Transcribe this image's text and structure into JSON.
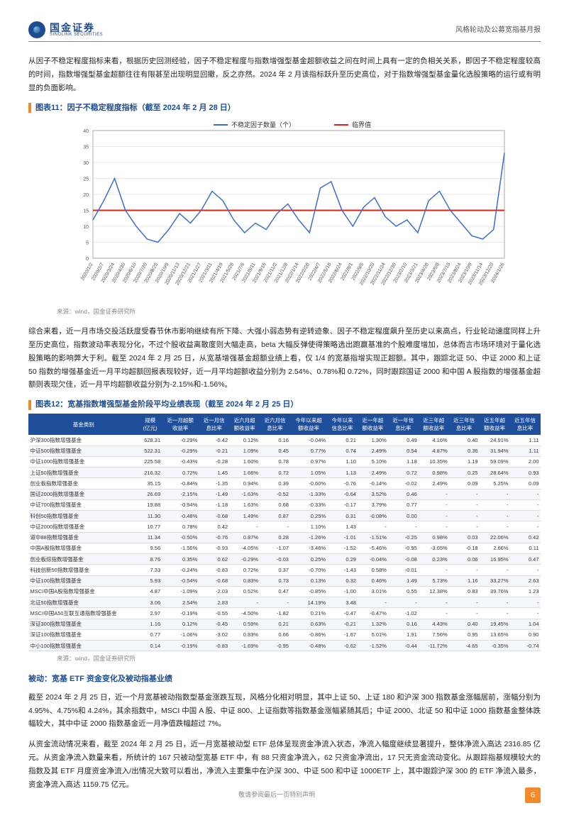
{
  "header": {
    "logo_cn": "国金证券",
    "logo_en": "SINOLINK SECURITIES",
    "report_title": "风格轮动及公募宽指基月报"
  },
  "para1": "从因子不稳定程度指标来看，根据历史回测经验，因子不稳定程度与指数增强型基金超额收益之间在时间上具有一定的负相关关系，即因子不稳定程度较高的时间，指数增强型基金超额往往有限甚至出现明显回撤，反之亦然。2024 年 2 月该指标跃升至历史高位，对于指数增强型基金量化选股策略的运行或有明显的负面影响。",
  "chart11": {
    "title": "图表11：因子不稳定程度指标（截至 2024 年 2 月 28 日）",
    "legend_series": "不稳定因子数量（个）",
    "legend_threshold": "临界值",
    "ylim": [
      0,
      40
    ],
    "ytick_step": 5,
    "threshold_value": 15,
    "series_color": "#3a6fc9",
    "threshold_color": "#d8261c",
    "grid_color": "#cfcfcf",
    "background_color": "#ffffff",
    "axis_fontsize": 7,
    "x_labels": [
      "2020/1/2",
      "2020/2/7",
      "2020/3/24",
      "2020/4/30",
      "2020/6/10",
      "2020/7/20",
      "2020/8/25",
      "2020/10/9",
      "2020/11/13",
      "2020/12/21",
      "2021/1/27",
      "2021/3/11",
      "2021/4/19",
      "2021/5/28",
      "2021/7/6",
      "2021/8/11",
      "2021/9/16",
      "2021/11/2",
      "2021/12/8",
      "2022/1/14",
      "2022/2/28",
      "2022/4/7",
      "2022/5/18",
      "2022/6/24",
      "2022/8/1",
      "2022/9/6",
      "2022/10/20",
      "2022/11/24",
      "2022/12/30",
      "2023/2/10",
      "2023/3/21",
      "2023/4/28",
      "2023/6/8",
      "2023/7/19",
      "2023/8/24",
      "2023/10/9",
      "2023/11/14",
      "2023/12/20",
      "2024/1/26"
    ],
    "values": [
      12,
      18,
      25,
      15,
      10,
      6,
      5,
      9,
      14,
      11,
      15,
      21,
      18,
      12,
      8,
      11,
      9,
      14,
      17,
      12,
      8,
      22,
      24,
      15,
      10,
      16,
      19,
      13,
      10,
      12,
      8,
      18,
      21,
      15,
      11,
      7,
      6,
      9,
      33
    ],
    "note": "来源：wind，国金证券研究所"
  },
  "para2": "综合来看，近一月市场交投活跃度受春节休市影响继续有所下降、大强小弱态势有逆转迹象、因子不稳定程度飙升至历史以来高点，行业轮动速度同样上升至历史高位，指数波动率表现分化，不过个股收益离散度则大幅走高，beta 大幅反弹使得策略选出跑赢基准的个股难度增加，总体而言市场环境对于量化选股策略的影响弊大于利。截至 2024 年 2 月 25 日，从宽基增强基金超额业绩上看，仅 1/4 的宽基指增实现正超额。其中，跟踪北证 50、中证 2000 和上证 50 指数的增强基金近一月平均超额回报表现较好，近一月平均超额收益分别为 2.54%、0.78%和 0.72%，同时跟踪国证 2000 和中国 A 股指数的增强基金超额则表现欠佳，近一月平均超额收益分别为-2.15%和-1.56%。",
  "chart12": {
    "title": "图表12：宽基指数增强型基金阶段平均业绩表现（截至 2024 年 2 月 25 日）",
    "columns": [
      "基金类别",
      "规模\n(亿元)",
      "近一月超额\n收益率",
      "近一月信\n息比率",
      "近六月超\n额收益率",
      "近六月信\n息比率",
      "今年以来超\n额收益率",
      "今年以来\n信息比率",
      "近一年超\n额收益率",
      "近一年信\n息比率",
      "近三年超\n额收益率",
      "近三年信\n息比率",
      "近五年超\n额收益率",
      "近五年信\n息比率"
    ],
    "rows": [
      [
        "沪深300指数增强基金",
        "628.31",
        "-0.29%",
        "-0.42",
        "0.12%",
        "0.16",
        "-0.04%",
        "0.21",
        "1.30%",
        "0.49",
        "4.16%",
        "0.40",
        "24.91%",
        "1.11"
      ],
      [
        "中证500指数增强基金",
        "522.31",
        "-0.29%",
        "-0.21",
        "1.09%",
        "0.45",
        "0.77%",
        "0.74",
        "2.49%",
        "0.54",
        "4.87%",
        "0.36",
        "31.94%",
        "1.11"
      ],
      [
        "中证1000指数增强基金",
        "225.58",
        "-0.43%",
        "-0.28",
        "1.60%",
        "0.78",
        "0.97%",
        "1.10",
        "5.10%",
        "1.18",
        "10.35%",
        "1.19",
        "59.09%",
        "2.00"
      ],
      [
        "上证50指数增强基金",
        "216.32",
        "0.72%",
        "1.45",
        "1.66%",
        "0.72",
        "1.05%",
        "1.13",
        "2.49%",
        "0.72",
        "0.98%",
        "0.25",
        "28.64%",
        "0.93"
      ],
      [
        "创业板指数增强基金",
        "35.15",
        "-0.84%",
        "-1.35",
        "0.94%",
        "0.39",
        "-0.60%",
        "-0.76",
        "-0.14%",
        "-0.02",
        "2.49%",
        "0.09",
        "5.25%",
        "0.09"
      ],
      [
        "国证2000指数增强基金",
        "26.69",
        "-2.15%",
        "-1.49",
        "-1.63%",
        "-0.52",
        "-1.33%",
        "-0.64",
        "3.52%",
        "0.46",
        "-",
        "-",
        "-",
        "-"
      ],
      [
        "中证700指数增强基金",
        "19.88",
        "-0.94%",
        "-1.18",
        "1.63%",
        "0.68",
        "-0.33%",
        "-0.17",
        "3.79%",
        "0.77",
        "-",
        "-",
        "-",
        "-"
      ],
      [
        "科创50指数增强基金",
        "11.30",
        "-0.48%",
        "-0.68",
        "1.49%",
        "0.87",
        "0.25%",
        "0.31",
        "-0.08%",
        "0.00",
        "-",
        "-",
        "-",
        "-"
      ],
      [
        "中证2000指数增强基金",
        "10.77",
        "0.78%",
        "0.42",
        "-",
        "-",
        "1.10%",
        "1.43",
        "-",
        "-",
        "-",
        "-",
        "-",
        "-"
      ],
      [
        "道中88指数增强基金",
        "11.34",
        "-0.50%",
        "-0.76",
        "0.87%",
        "0.28",
        "-1.26%",
        "-1.01",
        "-1.51%",
        "-0.25",
        "0.98%",
        "0.03",
        "22.06%",
        "0.42"
      ],
      [
        "中国A股指数增强基金",
        "9.56",
        "-1.56%",
        "-0.93",
        "-4.05%",
        "-1.07",
        "-3.46%",
        "-1.52",
        "-5.46%",
        "-0.95",
        "-3.05%",
        "-0.18",
        "2.66%",
        "0.11"
      ],
      [
        "创业板综指数增强基金",
        "8.76",
        "0.35%",
        "0.62",
        "-0.29%",
        "-0.03",
        "0.25%",
        "0.29",
        "-0.04%",
        "-0.08",
        "0.23%",
        "0.06",
        "16.95%",
        "0.47"
      ],
      [
        "科技创新50指数增强基金",
        "7.33",
        "-0.24%",
        "-0.83",
        "0.72%",
        "0.37",
        "-0.70%",
        "-1.43",
        "0.58%",
        "-0.01",
        "-",
        "-",
        "-",
        "-"
      ],
      [
        "中证100指数增强基金",
        "5.93",
        "-0.54%",
        "-0.68",
        "0.83%",
        "0.73",
        "0.13%",
        "0.32",
        "0.46%",
        "1.49",
        "5.73%",
        "1.16",
        "33.27%",
        "2.63"
      ],
      [
        "MSCI中国A股指数增强基金",
        "4.87",
        "-1.09%",
        "-2.03",
        "0.52%",
        "0.47",
        "-0.85%",
        "-1.00",
        "3.01%",
        "0.55",
        "12.38%",
        "0.83",
        "39.76%",
        "1.23"
      ],
      [
        "北证50指数增强基金",
        "3.06",
        "2.54%",
        "2.83",
        "-",
        "-",
        "14.19%",
        "3.48",
        "-",
        "-",
        "-",
        "-",
        "-",
        "-"
      ],
      [
        "MSCI中国A50互联互通指数增强基金",
        "2.97",
        "-0.19%",
        "-0.55",
        "-4.50%",
        "-1.82",
        "0.21%",
        "-0.47",
        "-0.47%",
        "-1.02",
        "-",
        "-",
        "-",
        "-"
      ],
      [
        "深证300指数增强基金",
        "1.16",
        "0.12%",
        "-0.45",
        "0.59%",
        "0.21",
        "0.63%",
        "-0.21",
        "1.32%",
        "0.16",
        "4.43%",
        "0.40",
        "19.45%",
        "1.04"
      ],
      [
        "深证100指数增强基金",
        "0.77",
        "-1.06%",
        "-3.02",
        "0.83%",
        "0.66",
        "-0.86%",
        "-1.67",
        "5.01%",
        "1.91",
        "7.56%",
        "0.95",
        "13.65%",
        "0.90"
      ],
      [
        "中小100指数增强基金",
        "0.14",
        "-0.19%",
        "-0.83",
        "-1.69%",
        "-0.95",
        "-0.48%",
        "-0.62",
        "-1.52%",
        "-0.44",
        "-11.72%",
        "-4.65",
        "-0.35%",
        "-0.74"
      ]
    ],
    "header_bg": "#1f4e9b",
    "header_color": "#ffffff",
    "row_even_bg": "#f3f6fb",
    "note": "来源：wind，国金证券研究所"
  },
  "section2_head": "被动：宽基 ETF 资金变化及被动指基业绩",
  "para3": "截至 2024 年 2 月 25 日，近一个月宽基被动指数型基金涨跌互现，风格分化相对明显，其中上证 50、上证 180 和沪深 300 指数基金涨幅居前，涨幅分别为 4.95%、4.75%和 4.24%，其余指数中，MSCI 中国 A 股、中证 800、上证指数等指数基金涨幅紧随其后；中证 2000、北证 50 和中证 1000 指数基金整体跌幅较大，其中中证 2000 指数基金近一月净值跌幅超过 7%。",
  "para4": "从资金流动情况来看，截至 2024 年 2 月 25 日，近一月宽基被动型 ETF 总体呈现资金净流入状态，净流入幅度继续显著提升，整体净流入高达 2316.85 亿元。从资金净流入数量来看，所统计的 167 只被动型宽基 ETF 中，有 88 只资金净流入，62 只资金净流出，17 只无资金流动变化。从跟踪指基规模较大的指数及其 ETF 月度资金净流入/出情况大致可以看出，净流入主要集中在沪深 300、中证 500 和中证 1000ETF 上，其中跟踪沪深 300 的 ETF 净流入最多，资金净流入高达 1159.75 亿元。",
  "footer": {
    "disclaimer": "敬请参阅最后一页特别声明",
    "page": "6"
  }
}
